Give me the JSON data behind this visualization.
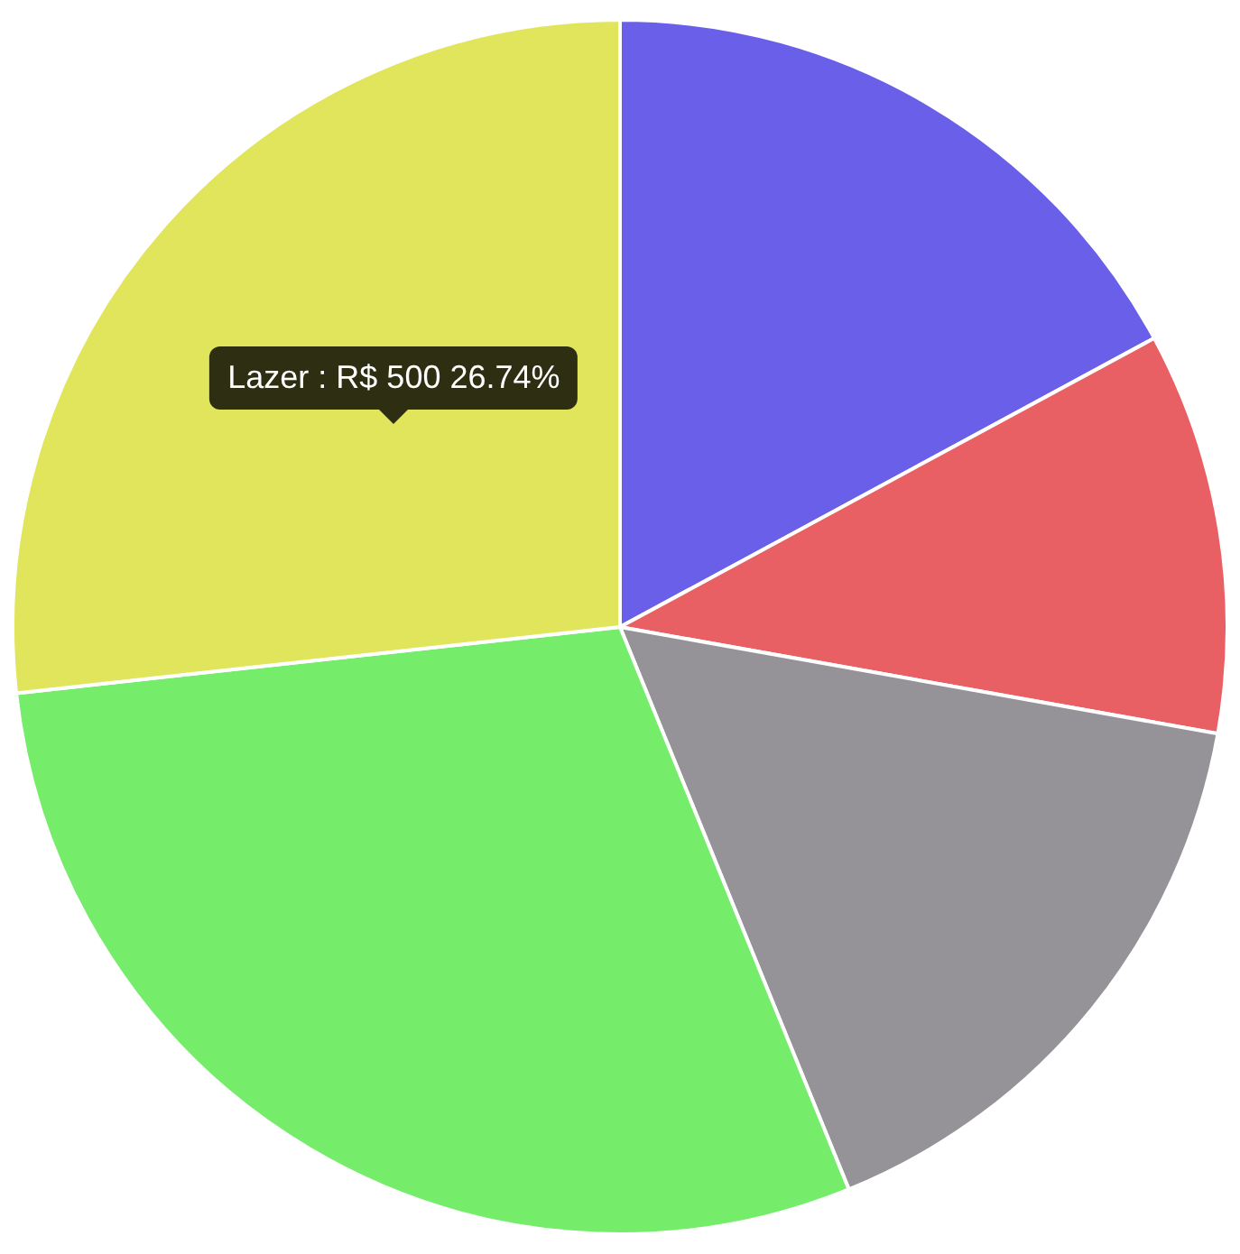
{
  "chart_data": {
    "type": "pie",
    "categories": [
      null,
      null,
      null,
      null,
      "Lazer"
    ],
    "values": [
      17.11,
      10.7,
      16.04,
      29.41,
      26.74
    ],
    "colors": [
      "#6a5fe8",
      "#e86063",
      "#959397",
      "#76ec6b",
      "#e0e55c"
    ],
    "value_labels": [
      null,
      null,
      null,
      null,
      "R$ 500 26.74%"
    ],
    "legend": false
  }
}
